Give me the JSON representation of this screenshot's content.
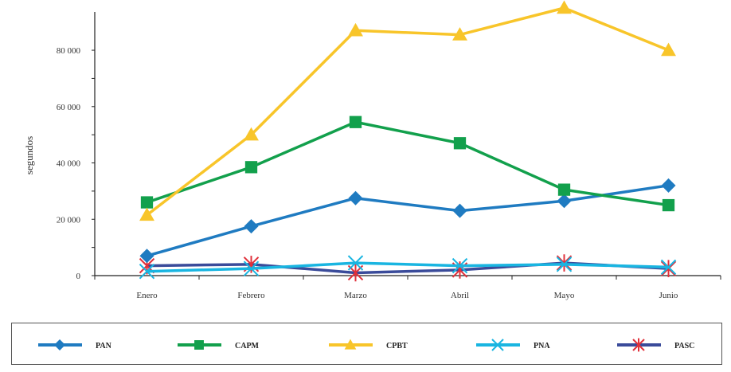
{
  "chart_data": {
    "type": "line",
    "title": "",
    "xlabel": "",
    "ylabel": "segundos",
    "categories": [
      "Enero",
      "Febrero",
      "Marzo",
      "Abril",
      "Mayo",
      "Junio"
    ],
    "ylim": [
      0,
      95000
    ],
    "yticks": [
      0,
      20000,
      40000,
      60000,
      80000
    ],
    "ytick_labels": [
      "0",
      "20 000",
      "40 000",
      "60 000",
      "80 000"
    ],
    "grid": false,
    "legend_position": "bottom",
    "series": [
      {
        "name": "PAN",
        "color": "#1f7bc1",
        "marker": "diamond",
        "values": [
          7000,
          17500,
          27500,
          23000,
          26500,
          32000
        ]
      },
      {
        "name": "CAPM",
        "color": "#12a04c",
        "marker": "square",
        "values": [
          26000,
          38500,
          54500,
          47000,
          30500,
          25000
        ]
      },
      {
        "name": "CPBT",
        "color": "#f8c52a",
        "marker": "triangle",
        "values": [
          21500,
          50000,
          87000,
          85500,
          95000,
          80000
        ]
      },
      {
        "name": "PNA",
        "color": "#19b5e1",
        "marker": "x",
        "values": [
          1500,
          2500,
          4500,
          3500,
          4000,
          3000
        ]
      },
      {
        "name": "PASC",
        "color": "#3a4b9a",
        "marker": "asterisk",
        "values": [
          3500,
          4000,
          1000,
          2000,
          4500,
          2500
        ]
      }
    ]
  }
}
